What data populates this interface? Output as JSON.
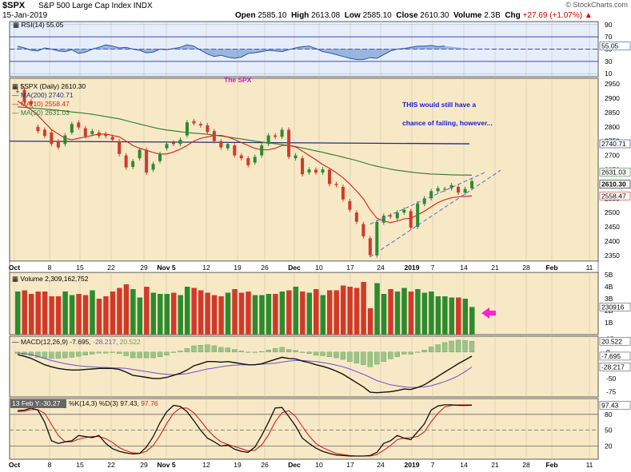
{
  "header": {
    "symbol": "$SPX",
    "name": "S&P 500 Large Cap Index",
    "exchange": "INDX",
    "date": "15-Jan-2019",
    "open_label": "Open",
    "open": "2585.10",
    "high_label": "High",
    "high": "2613.08",
    "low_label": "Low",
    "low": "2585.10",
    "close_label": "Close",
    "close": "2610.30",
    "volume_label": "Volume",
    "volume": "2.3B",
    "chg_label": "Chg",
    "chg": "+27.69 (+1.07%)",
    "chg_arrow": "▲",
    "brand": "© StockCharts.com"
  },
  "colors": {
    "panel_bg": "#f7e9c6",
    "rsi_bg": "#e6eefc",
    "ma200": "#1d2f8e",
    "ma10": "#d81e1e",
    "ma50": "#2c7a2c",
    "up": "#2d8b2d",
    "down": "#d13a2b",
    "annotation": "#1a1adb",
    "spx_label": "#e010c8",
    "arrow": "#ff22cc"
  },
  "x_axis": {
    "labels": [
      "Oct",
      "8",
      "15",
      "22",
      "29",
      "Nov 5",
      "12",
      "19",
      "26",
      "Dec",
      "10",
      "17",
      "24",
      "2019",
      "7",
      "14",
      "21",
      "28",
      "Feb",
      "11"
    ],
    "bold_labels": [
      "Oct",
      "Nov 5",
      "Dec",
      "2019",
      "Feb"
    ]
  },
  "annotations": {
    "spx_label": "The SPX",
    "comment_line1": "THIS would still have a",
    "comment_line2": "chance of failing,  however..."
  },
  "chart_data": [
    {
      "type": "line",
      "panel": "rsi",
      "legend": "RSI(14) 55.05",
      "ylim": [
        0,
        100
      ],
      "ticks": [
        90,
        70,
        50,
        30,
        10
      ],
      "reference_lines": [
        70,
        30
      ],
      "last_value_label": "55.05",
      "values": [
        55,
        52,
        48,
        47,
        52,
        50,
        47,
        46,
        49,
        43,
        45,
        50,
        53,
        57,
        55,
        52,
        53,
        50,
        48,
        44,
        45,
        50,
        49,
        51,
        53,
        57,
        55,
        48,
        42,
        38,
        40,
        37,
        35,
        37,
        43,
        44,
        46,
        48,
        47,
        46,
        49,
        52,
        54,
        55,
        51,
        46,
        44,
        41,
        38,
        35,
        33,
        33,
        36,
        35,
        41,
        47,
        50,
        51,
        53,
        55,
        55,
        56,
        54,
        55.05
      ]
    },
    {
      "type": "candlestick",
      "panel": "price",
      "legend": {
        "title": "$SPX (Daily) 2610.30",
        "ma200": "MA(200) 2740.71",
        "ma10": "MA(10) 2558.47",
        "ma50": "MA(50) 2631.03"
      },
      "ylim": [
        2330,
        2970
      ],
      "ticks": [
        2950,
        2900,
        2850,
        2800,
        2750,
        2700,
        2650,
        2600,
        2550,
        2500,
        2450,
        2400,
        2350
      ],
      "right_labels": [
        "2740.71",
        "2631.03",
        "2610.30",
        "2558.47"
      ],
      "close": [
        2925,
        2887,
        2880,
        2785,
        2768,
        2740,
        2728,
        2770,
        2810,
        2798,
        2767,
        2785,
        2768,
        2768,
        2755,
        2705,
        2658,
        2680,
        2720,
        2640,
        2670,
        2705,
        2740,
        2740,
        2755,
        2816,
        2812,
        2805,
        2782,
        2750,
        2728,
        2740,
        2700,
        2690,
        2666,
        2695,
        2735,
        2770,
        2765,
        2790,
        2695,
        2700,
        2634,
        2651,
        2640,
        2651,
        2600,
        2596,
        2546,
        2510,
        2468,
        2417,
        2351,
        2467,
        2489,
        2486,
        2500,
        2510,
        2447,
        2532,
        2550,
        2575,
        2585,
        2583,
        2596,
        2570,
        2582.61,
        2610.3
      ],
      "open": [
        2925,
        2930,
        2890,
        2800,
        2790,
        2780,
        2750,
        2740,
        2780,
        2815,
        2795,
        2775,
        2780,
        2775,
        2765,
        2750,
        2700,
        2660,
        2690,
        2720,
        2650,
        2680,
        2725,
        2745,
        2740,
        2770,
        2820,
        2810,
        2805,
        2785,
        2750,
        2725,
        2735,
        2700,
        2690,
        2675,
        2700,
        2740,
        2770,
        2765,
        2790,
        2690,
        2690,
        2640,
        2650,
        2640,
        2650,
        2600,
        2590,
        2540,
        2500,
        2460,
        2410,
        2350,
        2465,
        2490,
        2480,
        2500,
        2505,
        2450,
        2530,
        2550,
        2575,
        2580,
        2585,
        2590,
        2570,
        2585.1
      ],
      "ma200": {
        "start": 2750,
        "end": 2740.71
      },
      "ma10_values": [
        2890,
        2875,
        2860,
        2840,
        2815,
        2790,
        2775,
        2760,
        2755,
        2760,
        2765,
        2770,
        2775,
        2775,
        2770,
        2765,
        2750,
        2735,
        2725,
        2718,
        2710,
        2705,
        2705,
        2712,
        2722,
        2735,
        2750,
        2760,
        2765,
        2770,
        2770,
        2765,
        2755,
        2745,
        2735,
        2725,
        2720,
        2720,
        2725,
        2735,
        2735,
        2730,
        2715,
        2700,
        2685,
        2668,
        2655,
        2640,
        2622,
        2600,
        2575,
        2548,
        2510,
        2480,
        2470,
        2465,
        2470,
        2478,
        2480,
        2492,
        2505,
        2520,
        2535,
        2545,
        2552,
        2555,
        2557,
        2558.47
      ],
      "ma50_values": [
        2870,
        2868,
        2866,
        2864,
        2862,
        2860,
        2858,
        2855,
        2852,
        2850,
        2847,
        2844,
        2840,
        2836,
        2832,
        2828,
        2822,
        2816,
        2810,
        2804,
        2798,
        2793,
        2789,
        2786,
        2783,
        2780,
        2778,
        2776,
        2774,
        2771,
        2768,
        2765,
        2761,
        2758,
        2754,
        2750,
        2747,
        2744,
        2741,
        2738,
        2735,
        2731,
        2726,
        2721,
        2716,
        2711,
        2705,
        2700,
        2694,
        2688,
        2682,
        2675,
        2668,
        2662,
        2657,
        2652,
        2648,
        2645,
        2642,
        2639,
        2637,
        2635,
        2634,
        2633,
        2632,
        2631.5,
        2631.2,
        2631.03
      ],
      "trendlines": [
        "rising wedge upper",
        "rising wedge lower"
      ]
    },
    {
      "type": "bar",
      "panel": "volume",
      "legend": "Volume 2,309,162,752",
      "units": "B",
      "ylim": [
        0,
        5.2
      ],
      "ticks": [
        "5B",
        "4B",
        "3B",
        "2B",
        "1B"
      ],
      "last_value_label": "230916",
      "values": [
        3.6,
        3.7,
        3.4,
        3.6,
        3.6,
        3.2,
        3.2,
        3.6,
        3.3,
        3.4,
        3.3,
        3.7,
        3.0,
        3.2,
        3.6,
        3.9,
        4.2,
        3.8,
        3.1,
        4.0,
        3.5,
        3.4,
        3.4,
        3.5,
        3.3,
        4.0,
        3.9,
        3.7,
        3.5,
        3.3,
        3.2,
        3.5,
        3.8,
        3.5,
        3.6,
        3.3,
        3.3,
        3.4,
        3.4,
        3.6,
        3.7,
        4.0,
        3.6,
        3.5,
        3.8,
        3.3,
        3.7,
        3.7,
        4.1,
        4.0,
        3.9,
        4.4,
        2.2,
        4.3,
        3.4,
        3.8,
        3.6,
        3.9,
        3.6,
        3.8,
        3.5,
        3.6,
        3.2,
        3.2,
        3.1,
        3.1,
        3.0,
        2.31
      ]
    },
    {
      "type": "line",
      "panel": "macd",
      "legend_prefix": "MACD(12,26,9)",
      "macd_label": "-7.695",
      "signal_label": "-28.217",
      "hist_label": "20.522",
      "ylim": [
        -85,
        30
      ],
      "ticks": [
        "25",
        "0",
        "-25",
        "-50",
        "-75"
      ],
      "right_labels": [
        "20.522",
        "-7.695",
        "-28.217"
      ],
      "macd": [
        -5,
        -8,
        -12,
        -18,
        -24,
        -28,
        -31,
        -33,
        -34,
        -34,
        -33,
        -32,
        -31,
        -31,
        -31,
        -33,
        -38,
        -44,
        -46,
        -48,
        -50,
        -50,
        -48,
        -44,
        -40,
        -34,
        -26,
        -22,
        -18,
        -18,
        -19,
        -18,
        -20,
        -22,
        -24,
        -24,
        -22,
        -18,
        -14,
        -10,
        -12,
        -13,
        -17,
        -20,
        -24,
        -27,
        -31,
        -36,
        -42,
        -50,
        -58,
        -66,
        -76,
        -77,
        -76,
        -75,
        -73,
        -70,
        -71,
        -67,
        -62,
        -54,
        -46,
        -38,
        -30,
        -22,
        -15,
        -7.695
      ],
      "signal": [
        -2,
        -3,
        -5,
        -8,
        -12,
        -16,
        -19,
        -22,
        -24,
        -26,
        -27,
        -28,
        -29,
        -29,
        -30,
        -30,
        -31,
        -33,
        -35,
        -37,
        -39,
        -41,
        -42,
        -43,
        -42,
        -41,
        -38,
        -35,
        -32,
        -30,
        -28,
        -26,
        -25,
        -24,
        -24,
        -24,
        -23,
        -22,
        -21,
        -19,
        -17,
        -16,
        -16,
        -17,
        -18,
        -20,
        -22,
        -25,
        -28,
        -32,
        -37,
        -42,
        -48,
        -54,
        -58,
        -62,
        -64,
        -66,
        -67,
        -67,
        -66,
        -64,
        -60,
        -56,
        -51,
        -45,
        -37,
        -28.217
      ]
    },
    {
      "type": "line",
      "panel": "stochastic",
      "legend_prefix": "%K(14,3) %D(3)",
      "k_label": "97.43",
      "d_label": "97.76",
      "tooltip": "13 Feb Y:-30.27",
      "ylim": [
        0,
        100
      ],
      "ticks": [
        "80",
        "50",
        "20"
      ],
      "reference_lines": [
        80,
        50,
        20
      ],
      "right_labels": [
        "97.43"
      ],
      "k": [
        87,
        88,
        92,
        88,
        65,
        30,
        25,
        28,
        30,
        40,
        38,
        36,
        40,
        25,
        15,
        10,
        7,
        5,
        6,
        18,
        38,
        64,
        85,
        97,
        95,
        85,
        68,
        50,
        35,
        28,
        20,
        22,
        14,
        10,
        8,
        18,
        40,
        65,
        92,
        93,
        76,
        58,
        35,
        25,
        16,
        10,
        6,
        3,
        2,
        1,
        1,
        1,
        2,
        8,
        25,
        30,
        40,
        35,
        32,
        47,
        62,
        88,
        96,
        98,
        98,
        97,
        97,
        97.43
      ],
      "d": [
        85,
        86,
        89,
        89,
        82,
        61,
        40,
        28,
        28,
        33,
        36,
        38,
        38,
        34,
        27,
        17,
        11,
        7,
        6,
        10,
        21,
        40,
        63,
        82,
        92,
        92,
        83,
        68,
        51,
        38,
        28,
        23,
        19,
        15,
        11,
        12,
        22,
        41,
        66,
        83,
        87,
        76,
        57,
        39,
        25,
        17,
        11,
        6,
        4,
        2,
        1,
        1,
        1,
        4,
        12,
        21,
        32,
        35,
        36,
        38,
        47,
        66,
        82,
        94,
        97,
        98,
        98,
        97.76
      ]
    }
  ]
}
